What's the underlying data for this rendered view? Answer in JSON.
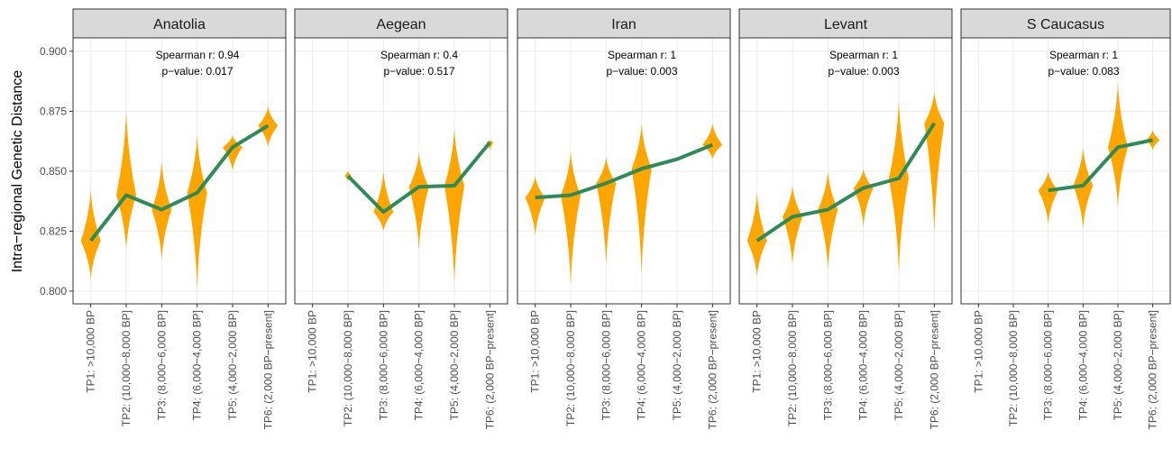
{
  "chart_data": [
    {
      "type": "violin",
      "title": "Anatolia",
      "ylabel": "Intra−regional Genetic Distance",
      "annotations": [
        "Spearman r: 0.94",
        "p−value: 0.017"
      ],
      "categories": [
        "TP1: >10,000 BP",
        "TP2: (10,000−8,000 BP]",
        "TP3: (8,000−6,000 BP]",
        "TP4: (6,000−4,000 BP]",
        "TP5: (4,000−2,000 BP]",
        "TP6: (2,000 BP−present]"
      ],
      "values": [
        0.821,
        0.84,
        0.834,
        0.841,
        0.86,
        0.869
      ],
      "ranges": [
        [
          0.805,
          0.842
        ],
        [
          0.817,
          0.875
        ],
        [
          0.813,
          0.854
        ],
        [
          0.801,
          0.865
        ],
        [
          0.85,
          0.865
        ],
        [
          0.86,
          0.877
        ]
      ],
      "violin_color": "#ffa500",
      "line_color": "#2e8b57",
      "ylim": [
        0.7947,
        0.9056
      ],
      "yticks": [
        {
          "value": 0.8,
          "label": "0.800"
        },
        {
          "value": 0.825,
          "label": "0.825"
        },
        {
          "value": 0.85,
          "label": "0.850"
        },
        {
          "value": 0.875,
          "label": "0.875"
        },
        {
          "value": 0.9,
          "label": "0.900"
        }
      ],
      "grid": true
    },
    {
      "type": "violin",
      "title": "Aegean",
      "annotations": [
        "Spearman r: 0.4",
        "p−value: 0.517"
      ],
      "categories": [
        "TP1: >10,000 BP",
        "TP2: (10,000−8,000 BP]",
        "TP3: (8,000−6,000 BP]",
        "TP4: (6,000−4,000 BP]",
        "TP5: (4,000−2,000 BP]",
        "TP6: (2,000 BP−present]"
      ],
      "values": [
        null,
        0.848,
        0.833,
        0.8435,
        0.844,
        0.862
      ],
      "ranges": [
        null,
        [
          0.846,
          0.85
        ],
        [
          0.825,
          0.85
        ],
        [
          0.817,
          0.858
        ],
        [
          0.803,
          0.868
        ],
        [
          0.859,
          0.863
        ]
      ],
      "violin_color": "#ffa500",
      "line_color": "#2e8b57"
    },
    {
      "type": "violin",
      "title": "Iran",
      "annotations": [
        "Spearman r: 1",
        "p−value: 0.003"
      ],
      "categories": [
        "TP1: >10,000 BP",
        "TP2: (10,000−8,000 BP]",
        "TP3: (8,000−6,000 BP]",
        "TP4: (6,000−4,000 BP]",
        "TP5: (4,000−2,000 BP]",
        "TP6: (2,000 BP−present]"
      ],
      "values": [
        0.839,
        0.84,
        0.845,
        0.851,
        0.855,
        0.861
      ],
      "ranges": [
        [
          0.823,
          0.848
        ],
        [
          0.803,
          0.858
        ],
        [
          0.811,
          0.856
        ],
        [
          0.807,
          0.87
        ],
        null,
        [
          0.855,
          0.87
        ]
      ],
      "violin_color": "#ffa500",
      "line_color": "#2e8b57"
    },
    {
      "type": "violin",
      "title": "Levant",
      "annotations": [
        "Spearman r: 1",
        "p−value: 0.003"
      ],
      "categories": [
        "TP1: >10,000 BP",
        "TP2: (10,000−8,000 BP]",
        "TP3: (8,000−6,000 BP]",
        "TP4: (6,000−4,000 BP]",
        "TP5: (4,000−2,000 BP]",
        "TP6: (2,000 BP−present]"
      ],
      "values": [
        0.821,
        0.831,
        0.834,
        0.843,
        0.847,
        0.87
      ],
      "ranges": [
        [
          0.806,
          0.841
        ],
        [
          0.811,
          0.844
        ],
        [
          0.809,
          0.85
        ],
        [
          0.827,
          0.851
        ],
        [
          0.808,
          0.88
        ],
        [
          0.824,
          0.883
        ]
      ],
      "violin_color": "#ffa500",
      "line_color": "#2e8b57"
    },
    {
      "type": "violin",
      "title": "S Caucasus",
      "annotations": [
        "Spearman r: 1",
        "p−value: 0.083"
      ],
      "categories": [
        "TP1: >10,000 BP",
        "TP2: (10,000−8,000 BP]",
        "TP3: (8,000−6,000 BP]",
        "TP4: (6,000−4,000 BP]",
        "TP5: (4,000−2,000 BP]",
        "TP6: (2,000 BP−present]"
      ],
      "values": [
        null,
        null,
        0.842,
        0.844,
        0.86,
        0.863
      ],
      "ranges": [
        null,
        null,
        [
          0.828,
          0.85
        ],
        [
          0.826,
          0.86
        ],
        [
          0.835,
          0.887
        ],
        [
          0.859,
          0.867
        ]
      ],
      "violin_color": "#ffa500",
      "line_color": "#2e8b57"
    }
  ]
}
